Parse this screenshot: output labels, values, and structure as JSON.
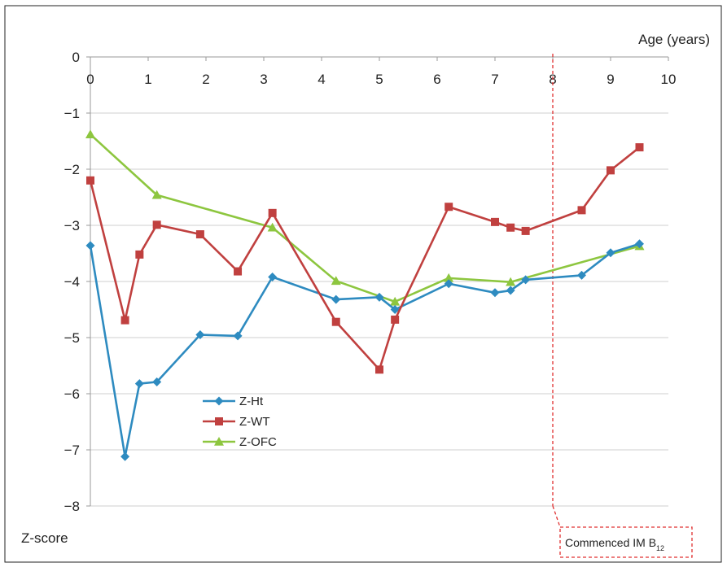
{
  "chart_data": {
    "type": "line",
    "xlabel": "Age (years)",
    "ylabel": "Z-score",
    "xlim": [
      0,
      10
    ],
    "ylim": [
      -8,
      0
    ],
    "x_ticks": [
      0,
      1,
      2,
      3,
      4,
      5,
      6,
      7,
      8,
      9,
      10
    ],
    "y_ticks": [
      0,
      -1,
      -2,
      -3,
      -4,
      -5,
      -6,
      -7,
      -8
    ],
    "y_tick_labels": [
      "0",
      "−1",
      "−2",
      "−3",
      "−4",
      "−5",
      "−6",
      "−7",
      "−8"
    ],
    "grid": "horizontal",
    "legend_position": "lower-left",
    "series": [
      {
        "name": "Z-Ht",
        "color": "#2E8BC0",
        "marker": "diamond",
        "x": [
          0,
          0.6,
          0.85,
          1.15,
          1.9,
          2.55,
          3.15,
          4.25,
          5.0,
          5.27,
          6.2,
          7.0,
          7.27,
          7.53,
          8.5,
          9.0,
          9.5
        ],
        "y": [
          -3.36,
          -7.12,
          -5.82,
          -5.79,
          -4.95,
          -4.97,
          -3.92,
          -4.32,
          -4.28,
          -4.5,
          -4.04,
          -4.2,
          -4.16,
          -3.97,
          -3.89,
          -3.49,
          -3.33
        ]
      },
      {
        "name": "Z-WT",
        "color": "#C0403F",
        "marker": "square",
        "x": [
          0,
          0.6,
          0.85,
          1.15,
          1.9,
          2.55,
          3.15,
          4.25,
          5.0,
          5.27,
          6.2,
          7.0,
          7.27,
          7.53,
          8.5,
          9.0,
          9.5
        ],
        "y": [
          -2.2,
          -4.69,
          -3.52,
          -2.99,
          -3.16,
          -3.82,
          -2.78,
          -4.72,
          -5.57,
          -4.68,
          -2.67,
          -2.94,
          -3.04,
          -3.1,
          -2.73,
          -2.02,
          -1.61
        ]
      },
      {
        "name": "Z-OFC",
        "color": "#8DC63F",
        "marker": "triangle",
        "x": [
          0,
          1.15,
          3.15,
          4.25,
          5.27,
          6.2,
          7.27,
          9.5
        ],
        "y": [
          -1.38,
          -2.46,
          -3.04,
          -3.99,
          -4.36,
          -3.94,
          -4.01,
          -3.37
        ]
      }
    ],
    "annotations": [
      {
        "type": "vertical-dashed-line",
        "x": 8,
        "color": "#E03030",
        "label_main": "Commenced IM B",
        "label_sub": "12"
      }
    ]
  }
}
